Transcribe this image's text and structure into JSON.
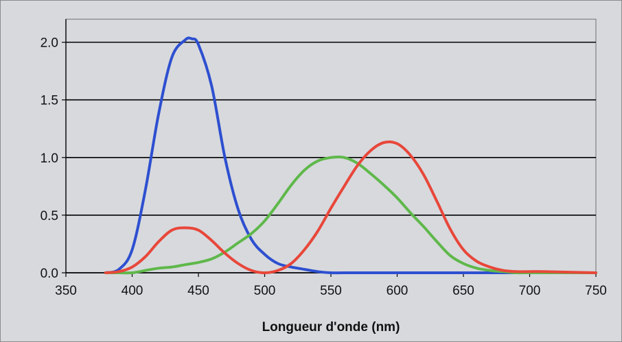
{
  "chart_data": {
    "type": "line",
    "title": "",
    "xlabel": "Longueur d'onde (nm)",
    "ylabel": "",
    "xlim": [
      350,
      750
    ],
    "ylim": [
      0,
      2.2
    ],
    "x_ticks": [
      350,
      400,
      450,
      500,
      550,
      600,
      650,
      700,
      750
    ],
    "y_ticks": [
      0.0,
      0.5,
      1.0,
      1.5,
      2.0
    ],
    "x_tick_labels": [
      "350",
      "400",
      "450",
      "500",
      "550",
      "600",
      "650",
      "700",
      "750"
    ],
    "y_tick_labels": [
      "0.0",
      "0.5",
      "1.0",
      "1.5",
      "2.0"
    ],
    "grid": "horizontal",
    "legend": "none",
    "colors": {
      "background": "#d7d9dd",
      "plot_background": "#d7d9dd",
      "gridline": "#000000",
      "blue": "#2d4fd0",
      "green": "#5fb84a",
      "red": "#e8473a"
    },
    "series": [
      {
        "color": "blue",
        "x": [
          380,
          390,
          400,
          410,
          420,
          430,
          440,
          445,
          450,
          460,
          470,
          480,
          490,
          500,
          510,
          520,
          530,
          540,
          550,
          560,
          580,
          600,
          650,
          700,
          750
        ],
        "y": [
          0.0,
          0.03,
          0.2,
          0.72,
          1.38,
          1.87,
          2.02,
          2.03,
          1.98,
          1.62,
          1.0,
          0.55,
          0.29,
          0.16,
          0.08,
          0.05,
          0.03,
          0.01,
          0.0,
          0.0,
          0.0,
          0.0,
          0.0,
          0.0,
          0.0
        ]
      },
      {
        "color": "green",
        "x": [
          380,
          390,
          400,
          410,
          420,
          430,
          440,
          450,
          460,
          470,
          480,
          490,
          500,
          510,
          520,
          530,
          540,
          550,
          560,
          570,
          580,
          590,
          600,
          610,
          620,
          630,
          640,
          650,
          660,
          670,
          680,
          690,
          700,
          750
        ],
        "y": [
          0.0,
          0.0,
          0.0,
          0.02,
          0.04,
          0.05,
          0.07,
          0.09,
          0.12,
          0.18,
          0.26,
          0.34,
          0.45,
          0.6,
          0.76,
          0.89,
          0.97,
          1.0,
          1.0,
          0.95,
          0.86,
          0.76,
          0.65,
          0.52,
          0.4,
          0.27,
          0.15,
          0.08,
          0.04,
          0.02,
          0.01,
          0.0,
          0.0,
          0.0
        ]
      },
      {
        "color": "red",
        "x": [
          380,
          390,
          400,
          410,
          420,
          430,
          440,
          450,
          460,
          470,
          480,
          490,
          500,
          510,
          520,
          530,
          540,
          550,
          560,
          570,
          580,
          590,
          600,
          610,
          620,
          630,
          640,
          650,
          660,
          670,
          680,
          690,
          700,
          710,
          750
        ],
        "y": [
          0.0,
          0.01,
          0.05,
          0.14,
          0.27,
          0.37,
          0.39,
          0.37,
          0.28,
          0.17,
          0.08,
          0.02,
          0.0,
          0.02,
          0.08,
          0.2,
          0.36,
          0.56,
          0.75,
          0.93,
          1.06,
          1.13,
          1.12,
          1.02,
          0.85,
          0.62,
          0.38,
          0.2,
          0.1,
          0.05,
          0.02,
          0.01,
          0.01,
          0.01,
          0.0
        ]
      }
    ]
  }
}
